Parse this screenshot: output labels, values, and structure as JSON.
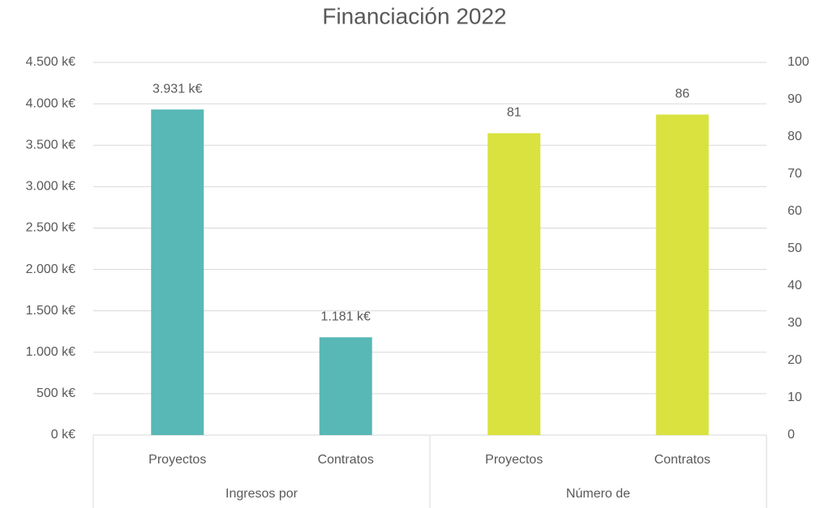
{
  "chart_data": {
    "type": "bar",
    "title": "Financiación 2022",
    "category_groups": [
      {
        "label": "Ingresos por",
        "categories": [
          "Proyectos",
          "Contratos"
        ]
      },
      {
        "label": "Número de",
        "categories": [
          "Proyectos",
          "Contratos"
        ]
      }
    ],
    "series": [
      {
        "color": "#58b8b6",
        "values": [
          3931,
          1181,
          null,
          null
        ],
        "value_labels": [
          "3.931 k€",
          "1.181 k€",
          null,
          null
        ]
      },
      {
        "color": "#d9e23f",
        "axis": "y2",
        "values": [
          null,
          null,
          81,
          86
        ]
      }
    ],
    "ylim": [
      0,
      4500
    ],
    "yticks": [
      {
        "value": 0,
        "label": "0 k€"
      },
      {
        "value": 500,
        "label": "500 k€"
      },
      {
        "value": 1000,
        "label": "1.000 k€"
      },
      {
        "value": 1500,
        "label": "1.500 k€"
      },
      {
        "value": 2000,
        "label": "2.000 k€"
      },
      {
        "value": 2500,
        "label": "2.500 k€"
      },
      {
        "value": 3000,
        "label": "3.000 k€"
      },
      {
        "value": 3500,
        "label": "3.500 k€"
      },
      {
        "value": 4000,
        "label": "4.000 k€"
      },
      {
        "value": 4500,
        "label": "4.500 k€"
      }
    ],
    "y2lim": [
      0,
      100
    ],
    "y2ticks": [
      0,
      10,
      20,
      30,
      40,
      50,
      60,
      70,
      80,
      90,
      100
    ],
    "grid": true
  }
}
